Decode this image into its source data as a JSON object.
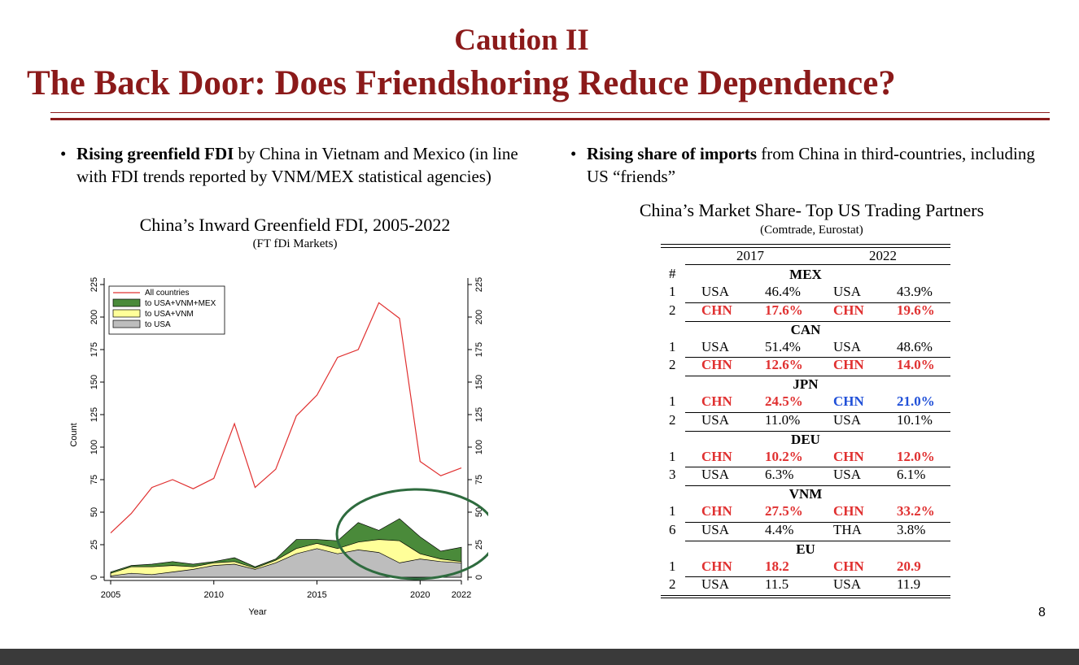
{
  "slide": {
    "title_line1": "Caution II",
    "title_line2": "The Back Door:  Does Friendshoring Reduce Dependence?",
    "page_number": "8"
  },
  "left": {
    "bullet_bold": "Rising greenfield FDI",
    "bullet_rest": " by China in Vietnam and Mexico (in line with FDI trends reported by VNM/MEX statistical agencies)",
    "chart_title": "China’s Inward Greenfield FDI, 2005-2022",
    "chart_source": "(FT fDi Markets)"
  },
  "right": {
    "bullet_bold": "Rising share of imports",
    "bullet_rest": " from China in third-countries, including US “friends”",
    "table_title": "China’s Market Share- Top US Trading Partners",
    "table_source": "(Comtrade, Eurostat)"
  },
  "colors": {
    "title": "#8b1a1a",
    "all_countries": "#e03030",
    "usa_vnm_mex": "#4a8a3a",
    "usa_vnm": "#ffff99",
    "usa": "#bdbdbd",
    "circle": "#2e6b3e",
    "highlight_red": "#e03030",
    "highlight_blue": "#2050d8"
  },
  "chart_data": {
    "type": "area",
    "title": "",
    "xlabel": "Year",
    "ylabel": "Count",
    "x": [
      2005,
      2006,
      2007,
      2008,
      2009,
      2010,
      2011,
      2012,
      2013,
      2014,
      2015,
      2016,
      2017,
      2018,
      2019,
      2020,
      2021,
      2022
    ],
    "xticks": [
      "2005",
      "2010",
      "2015",
      "2020",
      "2022"
    ],
    "yticks": [
      "0",
      "25",
      "50",
      "75",
      "100",
      "125",
      "150",
      "175",
      "200",
      "225"
    ],
    "ylim": [
      0,
      230
    ],
    "xlim": [
      2005,
      2022
    ],
    "legend_position": "top-left",
    "series": [
      {
        "name": "All countries",
        "style": "line",
        "values": [
          34,
          49,
          69,
          75,
          68,
          76,
          118,
          69,
          83,
          124,
          140,
          169,
          175,
          211,
          199,
          89,
          78,
          84
        ]
      },
      {
        "name": "to USA+VNM+MEX",
        "style": "area",
        "values": [
          4,
          9,
          10,
          12,
          10,
          12,
          15,
          8,
          14,
          29,
          29,
          28,
          42,
          36,
          45,
          31,
          20,
          23
        ]
      },
      {
        "name": "to USA+VNM",
        "style": "area",
        "values": [
          3,
          8,
          8,
          9,
          8,
          11,
          12,
          7,
          13,
          22,
          26,
          22,
          27,
          29,
          28,
          18,
          14,
          12
        ]
      },
      {
        "name": "to USA",
        "style": "area",
        "values": [
          1,
          3,
          2,
          4,
          6,
          9,
          10,
          6,
          11,
          18,
          22,
          18,
          21,
          19,
          11,
          14,
          12,
          11
        ]
      }
    ]
  },
  "table": {
    "year_a": "2017",
    "year_b": "2022",
    "hash": "#",
    "groups": [
      {
        "name": "MEX",
        "rows": [
          {
            "rank": "1",
            "c1": "USA",
            "v1": "46.4%",
            "c2": "USA",
            "v2": "43.9%",
            "hl1": "",
            "hl2": ""
          },
          {
            "rank": "2",
            "c1": "CHN",
            "v1": "17.6%",
            "c2": "CHN",
            "v2": "19.6%",
            "hl1": "red",
            "hl2": "red"
          }
        ]
      },
      {
        "name": "CAN",
        "rows": [
          {
            "rank": "1",
            "c1": "USA",
            "v1": "51.4%",
            "c2": "USA",
            "v2": "48.6%",
            "hl1": "",
            "hl2": ""
          },
          {
            "rank": "2",
            "c1": "CHN",
            "v1": "12.6%",
            "c2": "CHN",
            "v2": "14.0%",
            "hl1": "red",
            "hl2": "red"
          }
        ]
      },
      {
        "name": "JPN",
        "rows": [
          {
            "rank": "1",
            "c1": "CHN",
            "v1": "24.5%",
            "c2": "CHN",
            "v2": "21.0%",
            "hl1": "red",
            "hl2": "blue"
          },
          {
            "rank": "2",
            "c1": "USA",
            "v1": "11.0%",
            "c2": "USA",
            "v2": "10.1%",
            "hl1": "",
            "hl2": ""
          }
        ]
      },
      {
        "name": "DEU",
        "rows": [
          {
            "rank": "1",
            "c1": "CHN",
            "v1": "10.2%",
            "c2": "CHN",
            "v2": "12.0%",
            "hl1": "red",
            "hl2": "red"
          },
          {
            "rank": "3",
            "c1": "USA",
            "v1": "6.3%",
            "c2": "USA",
            "v2": "6.1%",
            "hl1": "",
            "hl2": ""
          }
        ]
      },
      {
        "name": "VNM",
        "rows": [
          {
            "rank": "1",
            "c1": "CHN",
            "v1": "27.5%",
            "c2": "CHN",
            "v2": "33.2%",
            "hl1": "red",
            "hl2": "red"
          },
          {
            "rank": "6",
            "c1": "USA",
            "v1": "4.4%",
            "c2": "THA",
            "v2": "3.8%",
            "hl1": "",
            "hl2": ""
          }
        ]
      },
      {
        "name": "EU",
        "rows": [
          {
            "rank": "1",
            "c1": "CHN",
            "v1": "18.2",
            "c2": "CHN",
            "v2": "20.9",
            "hl1": "red",
            "hl2": "red"
          },
          {
            "rank": "2",
            "c1": "USA",
            "v1": "11.5",
            "c2": "USA",
            "v2": "11.9",
            "hl1": "",
            "hl2": ""
          }
        ]
      }
    ]
  }
}
